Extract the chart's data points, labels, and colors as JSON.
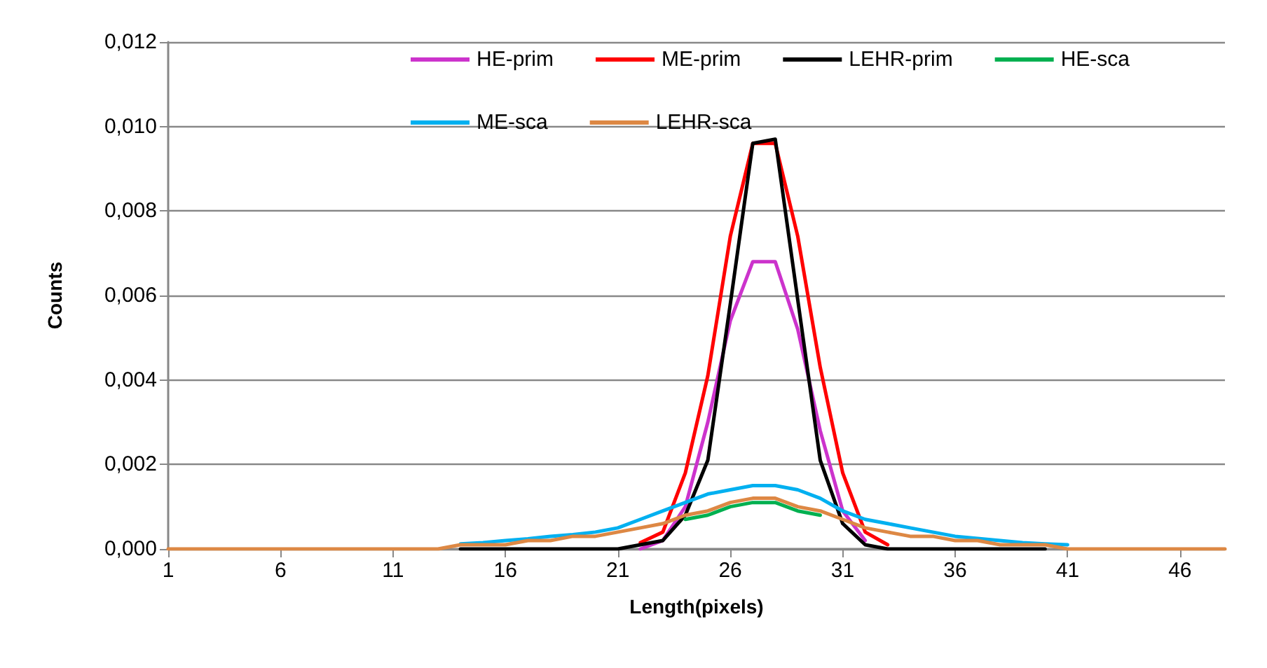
{
  "chart_data": {
    "type": "line",
    "xlabel": "Length(pixels)",
    "ylabel": "Counts",
    "x": [
      1,
      2,
      3,
      4,
      5,
      6,
      7,
      8,
      9,
      10,
      11,
      12,
      13,
      14,
      15,
      16,
      17,
      18,
      19,
      20,
      21,
      22,
      23,
      24,
      25,
      26,
      27,
      28,
      29,
      30,
      31,
      32,
      33,
      34,
      35,
      36,
      37,
      38,
      39,
      40,
      41,
      42,
      43,
      44,
      45,
      46,
      47,
      48
    ],
    "xlim": [
      1,
      48
    ],
    "xticks": [
      1,
      6,
      11,
      16,
      21,
      26,
      31,
      36,
      41,
      46
    ],
    "ylim": [
      0,
      0.012
    ],
    "yticks": [
      {
        "value": 0,
        "label": "0,000"
      },
      {
        "value": 0.002,
        "label": "0,002"
      },
      {
        "value": 0.004,
        "label": "0,004"
      },
      {
        "value": 0.006,
        "label": "0,006"
      },
      {
        "value": 0.008,
        "label": "0,008"
      },
      {
        "value": 0.01,
        "label": "0,010"
      },
      {
        "value": 0.012,
        "label": "0,012"
      }
    ],
    "grid": "y",
    "legend": "top",
    "marker": "none",
    "line_style": "solid",
    "series": [
      {
        "name": "HE-prim",
        "color": "#cc33cc",
        "values": [
          null,
          null,
          null,
          null,
          null,
          null,
          null,
          null,
          null,
          null,
          null,
          null,
          null,
          null,
          null,
          null,
          null,
          null,
          null,
          null,
          null,
          0,
          0.0002,
          0.001,
          0.003,
          0.0054,
          0.0068,
          0.0068,
          0.0052,
          0.0028,
          0.0009,
          0.0002,
          null,
          null,
          null,
          null,
          null,
          null,
          null,
          null,
          null,
          null,
          null,
          null,
          null,
          null,
          null,
          null
        ]
      },
      {
        "name": "ME-prim",
        "color": "#ff0000",
        "values": [
          null,
          null,
          null,
          null,
          null,
          null,
          null,
          null,
          null,
          null,
          null,
          null,
          null,
          null,
          null,
          null,
          null,
          null,
          null,
          null,
          null,
          0.00015,
          0.0004,
          0.0018,
          0.0041,
          0.0074,
          0.0096,
          0.0096,
          0.0074,
          0.0043,
          0.0018,
          0.0004,
          0.0001,
          null,
          null,
          null,
          null,
          null,
          null,
          null,
          null,
          null,
          null,
          null,
          null,
          null,
          null,
          null
        ]
      },
      {
        "name": "LEHR-prim",
        "color": "#000000",
        "values": [
          null,
          null,
          null,
          null,
          null,
          null,
          null,
          null,
          null,
          null,
          null,
          null,
          null,
          0,
          0,
          0,
          0,
          0,
          0,
          0,
          0,
          0.0001,
          0.0002,
          0.0008,
          0.0021,
          0.0058,
          0.0096,
          0.0097,
          0.0059,
          0.0021,
          0.0006,
          0.0001,
          0,
          0,
          0,
          0,
          0,
          0,
          0,
          0,
          null,
          null,
          null,
          null,
          null,
          null,
          null,
          null
        ]
      },
      {
        "name": "HE-sca",
        "color": "#00b050",
        "values": [
          null,
          null,
          null,
          null,
          null,
          null,
          null,
          null,
          null,
          null,
          null,
          null,
          null,
          null,
          null,
          null,
          null,
          null,
          null,
          null,
          null,
          null,
          null,
          0.0007,
          0.0008,
          0.001,
          0.0011,
          0.0011,
          0.0009,
          0.0008,
          null,
          null,
          null,
          null,
          null,
          null,
          null,
          null,
          null,
          null,
          null,
          null,
          null,
          null,
          null,
          null,
          null,
          null
        ]
      },
      {
        "name": "ME-sca",
        "color": "#00b0f0",
        "values": [
          null,
          null,
          null,
          null,
          null,
          null,
          null,
          null,
          null,
          null,
          null,
          null,
          null,
          0.00012,
          0.00015,
          0.0002,
          0.00024,
          0.0003,
          0.00034,
          0.0004,
          0.0005,
          0.0007,
          0.0009,
          0.0011,
          0.0013,
          0.0014,
          0.0015,
          0.0015,
          0.0014,
          0.0012,
          0.0009,
          0.0007,
          0.0006,
          0.0005,
          0.0004,
          0.0003,
          0.00025,
          0.0002,
          0.00015,
          0.00012,
          0.0001,
          null,
          null,
          null,
          null,
          null,
          null,
          null
        ]
      },
      {
        "name": "LEHR-sca",
        "color": "#dd8844",
        "values": [
          0,
          0,
          0,
          0,
          0,
          0,
          0,
          0,
          0,
          0,
          0,
          0,
          0,
          0.0001,
          0.0001,
          0.0001,
          0.0002,
          0.0002,
          0.0003,
          0.0003,
          0.0004,
          0.0005,
          0.0006,
          0.0008,
          0.0009,
          0.0011,
          0.0012,
          0.0012,
          0.001,
          0.0009,
          0.0007,
          0.0005,
          0.0004,
          0.0003,
          0.0003,
          0.0002,
          0.0002,
          0.0001,
          0.0001,
          0.0001,
          0,
          0,
          0,
          0,
          0,
          0,
          0,
          0
        ]
      }
    ]
  }
}
